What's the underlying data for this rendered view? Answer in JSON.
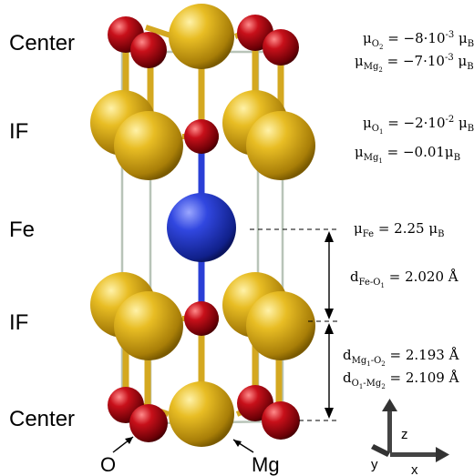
{
  "layer_labels": {
    "center_top": "Center",
    "if_top": "IF",
    "fe": "Fe",
    "if_bottom": "IF",
    "center_bottom": "Center"
  },
  "atom_labels": {
    "oxygen": "O",
    "magnesium": "Mg"
  },
  "moments": {
    "mu": "μ",
    "o2": {
      "sub": "O",
      "subsub": "2",
      "value": " = −8·10",
      "exp": "-3",
      "unit": " μ",
      "unit_sub": "B"
    },
    "mg2": {
      "sub": "Mg",
      "subsub": "2",
      "value": " = −7·10",
      "exp": "-3",
      "unit": " μ",
      "unit_sub": "B"
    },
    "o1": {
      "sub": "O",
      "subsub": "1",
      "value": " = −2·10",
      "exp": "-2",
      "unit": " μ",
      "unit_sub": "B"
    },
    "mg1": {
      "sub": "Mg",
      "subsub": "1",
      "value": " = −0.01μ",
      "unit_sub": "B"
    },
    "fe": {
      "sub": "Fe",
      "value": " =   2.25 μ",
      "unit_sub": "B"
    }
  },
  "distances": {
    "d": "d",
    "fe_o1": {
      "sub": "Fe-O",
      "subsub": "1",
      "value": " = 2.020 Å"
    },
    "mg1_o2": {
      "sub_a": "Mg",
      "subsub_a": "1",
      "sub_b": "-O",
      "subsub_b": "2",
      "value": " = 2.193 Å"
    },
    "o1_mg2": {
      "sub_a": "O",
      "subsub_a": "1",
      "sub_b": "-Mg",
      "subsub_b": "2",
      "value": " = 2.109 Å"
    }
  },
  "axes": {
    "z": "z",
    "y": "y",
    "x": "x"
  },
  "colors": {
    "mg": "#e0b21c",
    "o": "#b00510",
    "fe": "#2a3fd6",
    "bond_gold": "#d4a820",
    "cell_line": "#b8c4b8"
  }
}
